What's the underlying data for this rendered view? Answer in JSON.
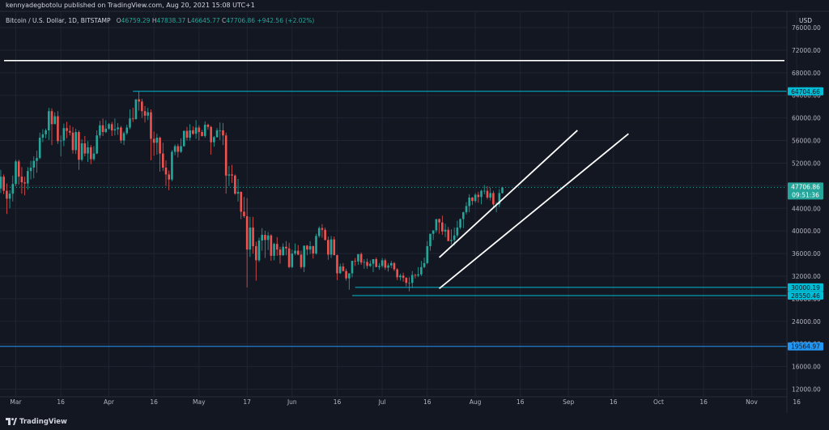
{
  "header": {
    "published_text": "kennyadegbotolu published on TradingView.com, Aug 20, 2021 15:08 UTC+1"
  },
  "legend": {
    "symbol": "Bitcoin / U.S. Dollar, 1D, BITSTAMP",
    "open_label": "O",
    "open": "46759.29",
    "high_label": "H",
    "high": "47838.37",
    "low_label": "L",
    "low": "46645.77",
    "close_label": "C",
    "close": "47706.86",
    "change": "+942.56 (+2.02%)"
  },
  "axis": {
    "currency": "USD"
  },
  "footer": {
    "brand": "TradingView"
  },
  "colors": {
    "background": "#131722",
    "up": "#26a69a",
    "down": "#ef5350",
    "cyan_line": "#00bcd4",
    "blue_line": "#2196f3",
    "trend_line": "#ffffff",
    "grid": "#1f2433"
  },
  "chart_data": {
    "type": "candlestick",
    "symbol": "BTCUSD",
    "timeframe": "1D",
    "y_ticks": [
      "76000.00",
      "72000.00",
      "68000.00",
      "64000.00",
      "60000.00",
      "56000.00",
      "52000.00",
      "48000.00",
      "44000.00",
      "40000.00",
      "36000.00",
      "32000.00",
      "28000.00",
      "24000.00",
      "20000.00",
      "16000.00",
      "12000.00"
    ],
    "x_ticks": [
      "Mar",
      "16",
      "Apr",
      "16",
      "May",
      "17",
      "Jun",
      "16",
      "Jul",
      "16",
      "Aug",
      "16",
      "Sep",
      "16",
      "Oct",
      "16",
      "Nov",
      "16"
    ],
    "ylim": [
      10500,
      78500
    ],
    "last_price": "47706.86",
    "countdown": "09:51:36",
    "horizontal_levels": [
      {
        "label": "64704.66",
        "value": 64704.66,
        "color": "#00bcd4",
        "style": "level"
      },
      {
        "label": "30000.19",
        "value": 30000.19,
        "color": "#00bcd4",
        "style": "level"
      },
      {
        "label": "28550.46",
        "value": 28550.46,
        "color": "#00bcd4",
        "style": "level"
      },
      {
        "label": "19564.97",
        "value": 19564.97,
        "color": "#2196f3",
        "style": "level"
      },
      {
        "label": "",
        "value": 70150,
        "color": "#ffffff",
        "style": "white"
      }
    ],
    "trend_lines": [
      {
        "from": [
          "2021-07-20",
          35300
        ],
        "to": [
          "2021-09-04",
          57800
        ]
      },
      {
        "from": [
          "2021-07-20",
          29800
        ],
        "to": [
          "2021-09-21",
          57200
        ]
      }
    ],
    "candles_start": "2021-02-24",
    "candles": [
      [
        47500,
        50800,
        46700,
        49600
      ],
      [
        49600,
        50000,
        46500,
        47100
      ],
      [
        47100,
        48400,
        43000,
        45700
      ],
      [
        45700,
        47200,
        44000,
        46600
      ],
      [
        46600,
        49800,
        45200,
        48300
      ],
      [
        48300,
        52600,
        47900,
        52300
      ],
      [
        52300,
        52600,
        48200,
        49600
      ],
      [
        49600,
        51300,
        46600,
        48600
      ],
      [
        48600,
        49600,
        46300,
        48400
      ],
      [
        48400,
        51300,
        47300,
        50600
      ],
      [
        50600,
        52400,
        49100,
        51200
      ],
      [
        51200,
        53200,
        49300,
        52400
      ],
      [
        52400,
        54200,
        50300,
        52900
      ],
      [
        52900,
        57400,
        52700,
        56500
      ],
      [
        56500,
        58000,
        55700,
        57100
      ],
      [
        57100,
        58100,
        56400,
        57800
      ],
      [
        57800,
        61800,
        56100,
        61200
      ],
      [
        61200,
        61700,
        55200,
        58900
      ],
      [
        58900,
        61000,
        59000,
        60300
      ],
      [
        60300,
        61200,
        55400,
        55900
      ],
      [
        55900,
        56900,
        53200,
        56000
      ],
      [
        56000,
        59000,
        55000,
        58200
      ],
      [
        58200,
        59300,
        56400,
        57700
      ],
      [
        57700,
        58700,
        56900,
        57400
      ],
      [
        57400,
        58400,
        53700,
        54300
      ],
      [
        54300,
        58100,
        53600,
        57500
      ],
      [
        57500,
        57800,
        50800,
        52600
      ],
      [
        52600,
        56200,
        52300,
        55500
      ],
      [
        55500,
        56800,
        53200,
        53700
      ],
      [
        53700,
        55900,
        52200,
        54800
      ],
      [
        54800,
        55200,
        51800,
        52700
      ],
      [
        52700,
        55000,
        52400,
        53700
      ],
      [
        53700,
        57800,
        53600,
        56900
      ],
      [
        56900,
        59500,
        56400,
        58700
      ],
      [
        58700,
        59900,
        56800,
        57500
      ],
      [
        57500,
        59600,
        57300,
        58100
      ],
      [
        58100,
        59100,
        57900,
        58900
      ],
      [
        58900,
        59300,
        56800,
        57800
      ],
      [
        57800,
        59900,
        56900,
        58000
      ],
      [
        58000,
        59100,
        57000,
        58300
      ],
      [
        58300,
        58600,
        55500,
        56000
      ],
      [
        56000,
        57600,
        55200,
        57300
      ],
      [
        57300,
        58800,
        57000,
        58300
      ],
      [
        58300,
        61500,
        58000,
        59900
      ],
      [
        59900,
        61800,
        59300,
        59800
      ],
      [
        59800,
        63000,
        59700,
        63300
      ],
      [
        63300,
        64700,
        61300,
        62900
      ],
      [
        62900,
        63400,
        60000,
        61200
      ],
      [
        61200,
        62100,
        59200,
        60400
      ],
      [
        60400,
        61800,
        59600,
        61000
      ],
      [
        61000,
        61500,
        52500,
        56300
      ],
      [
        56300,
        57600,
        53300,
        55600
      ],
      [
        55600,
        57200,
        53500,
        56500
      ],
      [
        56500,
        56700,
        50500,
        53700
      ],
      [
        53700,
        55600,
        50600,
        51200
      ],
      [
        51200,
        52500,
        48000,
        50000
      ],
      [
        50000,
        50700,
        47200,
        49100
      ],
      [
        49100,
        54300,
        48800,
        54000
      ],
      [
        54000,
        55300,
        53400,
        55000
      ],
      [
        55000,
        55400,
        53000,
        54000
      ],
      [
        54000,
        56400,
        53800,
        55000
      ],
      [
        55000,
        57800,
        54900,
        57700
      ],
      [
        57700,
        58400,
        56000,
        56500
      ],
      [
        56500,
        58900,
        56000,
        57800
      ],
      [
        57800,
        58500,
        57000,
        57200
      ],
      [
        57200,
        59600,
        56300,
        58300
      ],
      [
        58300,
        58700,
        56000,
        57500
      ],
      [
        57500,
        57900,
        56700,
        56800
      ],
      [
        56800,
        59400,
        56500,
        58800
      ],
      [
        58800,
        59000,
        57900,
        58400
      ],
      [
        58400,
        58600,
        53500,
        55700
      ],
      [
        55700,
        56800,
        54900,
        56600
      ],
      [
        56600,
        58200,
        56500,
        57800
      ],
      [
        57800,
        59200,
        56100,
        57800
      ],
      [
        57800,
        59100,
        55200,
        56900
      ],
      [
        56900,
        57400,
        46600,
        49800
      ],
      [
        49800,
        51500,
        48000,
        50000
      ],
      [
        50000,
        51700,
        48500,
        49800
      ],
      [
        49800,
        50000,
        46400,
        46600
      ],
      [
        46600,
        49200,
        45200,
        46900
      ],
      [
        46900,
        47000,
        42100,
        43400
      ],
      [
        43400,
        46000,
        42300,
        42600
      ],
      [
        42600,
        45800,
        30000,
        36700
      ],
      [
        36700,
        42500,
        35400,
        40600
      ],
      [
        40600,
        42500,
        36000,
        37300
      ],
      [
        37300,
        38100,
        31200,
        34800
      ],
      [
        34800,
        38800,
        34500,
        38300
      ],
      [
        38300,
        40500,
        36500,
        39300
      ],
      [
        39300,
        40000,
        35200,
        38400
      ],
      [
        38400,
        39800,
        36600,
        39200
      ],
      [
        39200,
        39400,
        34700,
        35600
      ],
      [
        35600,
        37900,
        34800,
        37700
      ],
      [
        37700,
        38900,
        35600,
        36700
      ],
      [
        36700,
        37200,
        34200,
        35700
      ],
      [
        35700,
        37800,
        35600,
        37200
      ],
      [
        37200,
        38200,
        35700,
        36900
      ],
      [
        36900,
        37900,
        33400,
        33600
      ],
      [
        33600,
        36700,
        33400,
        36000
      ],
      [
        36000,
        37800,
        35700,
        36500
      ],
      [
        36500,
        37500,
        35700,
        35800
      ],
      [
        35800,
        36500,
        33300,
        33600
      ],
      [
        33600,
        37000,
        32700,
        37400
      ],
      [
        37400,
        37500,
        35700,
        36700
      ],
      [
        36700,
        38200,
        35900,
        37300
      ],
      [
        37300,
        37400,
        35100,
        36000
      ],
      [
        36000,
        39500,
        35800,
        39100
      ],
      [
        39100,
        40800,
        38800,
        40500
      ],
      [
        40500,
        41200,
        38800,
        40200
      ],
      [
        40200,
        40600,
        38300,
        38400
      ],
      [
        38400,
        39000,
        34900,
        35800
      ],
      [
        35800,
        39100,
        35200,
        38500
      ],
      [
        38500,
        39000,
        35900,
        35700
      ],
      [
        35700,
        35800,
        31300,
        32500
      ],
      [
        32500,
        34200,
        32400,
        33700
      ],
      [
        33700,
        34300,
        32800,
        32900
      ],
      [
        32900,
        33300,
        31200,
        31600
      ],
      [
        31600,
        32500,
        29600,
        32500
      ],
      [
        32500,
        34700,
        31800,
        34700
      ],
      [
        34700,
        35200,
        33800,
        34600
      ],
      [
        34600,
        35700,
        34000,
        35900
      ],
      [
        35900,
        36200,
        34000,
        34400
      ],
      [
        34400,
        35000,
        33300,
        34500
      ],
      [
        34500,
        35100,
        33300,
        33800
      ],
      [
        33800,
        34800,
        33600,
        34200
      ],
      [
        34200,
        35000,
        32700,
        35000
      ],
      [
        35000,
        35300,
        33900,
        33600
      ],
      [
        33600,
        34300,
        33100,
        33800
      ],
      [
        33800,
        35200,
        33500,
        34800
      ],
      [
        34800,
        35100,
        33100,
        33500
      ],
      [
        33500,
        34300,
        32800,
        33900
      ],
      [
        33900,
        34700,
        33400,
        34300
      ],
      [
        34300,
        34500,
        32900,
        33200
      ],
      [
        33200,
        33400,
        31300,
        31800
      ],
      [
        31800,
        32400,
        31200,
        32100
      ],
      [
        32100,
        32600,
        31000,
        31700
      ],
      [
        31700,
        31800,
        30200,
        30800
      ],
      [
        30800,
        31800,
        29300,
        30800
      ],
      [
        30800,
        32900,
        29900,
        32200
      ],
      [
        32200,
        32400,
        31600,
        32100
      ],
      [
        32100,
        33600,
        31800,
        32300
      ],
      [
        32300,
        34700,
        32000,
        33600
      ],
      [
        33600,
        35300,
        33400,
        34300
      ],
      [
        34300,
        38200,
        34100,
        37300
      ],
      [
        37300,
        39300,
        36500,
        39500
      ],
      [
        39500,
        40100,
        38400,
        40100
      ],
      [
        40100,
        41900,
        39700,
        42100
      ],
      [
        42100,
        42200,
        39500,
        41500
      ],
      [
        41500,
        42700,
        39300,
        39900
      ],
      [
        39900,
        41300,
        38900,
        40200
      ],
      [
        40200,
        40700,
        38200,
        38200
      ],
      [
        38200,
        40300,
        37600,
        38400
      ],
      [
        38400,
        40600,
        37400,
        39200
      ],
      [
        39200,
        41800,
        38800,
        40600
      ],
      [
        40600,
        42200,
        40300,
        42100
      ],
      [
        42100,
        43400,
        40500,
        43300
      ],
      [
        43300,
        45100,
        42900,
        44400
      ],
      [
        44400,
        46500,
        43300,
        45900
      ],
      [
        45900,
        46000,
        44600,
        45300
      ],
      [
        45300,
        46700,
        45000,
        46400
      ],
      [
        46400,
        46900,
        45000,
        46000
      ],
      [
        46000,
        47300,
        44700,
        47100
      ],
      [
        47100,
        48100,
        46500,
        47100
      ],
      [
        47100,
        47900,
        45600,
        45900
      ],
      [
        45900,
        47700,
        45400,
        46700
      ],
      [
        46700,
        47100,
        44200,
        44700
      ],
      [
        44700,
        45100,
        43300,
        44700
      ],
      [
        44700,
        47400,
        44200,
        46700
      ],
      [
        46700,
        47800,
        46600,
        47700
      ]
    ]
  }
}
